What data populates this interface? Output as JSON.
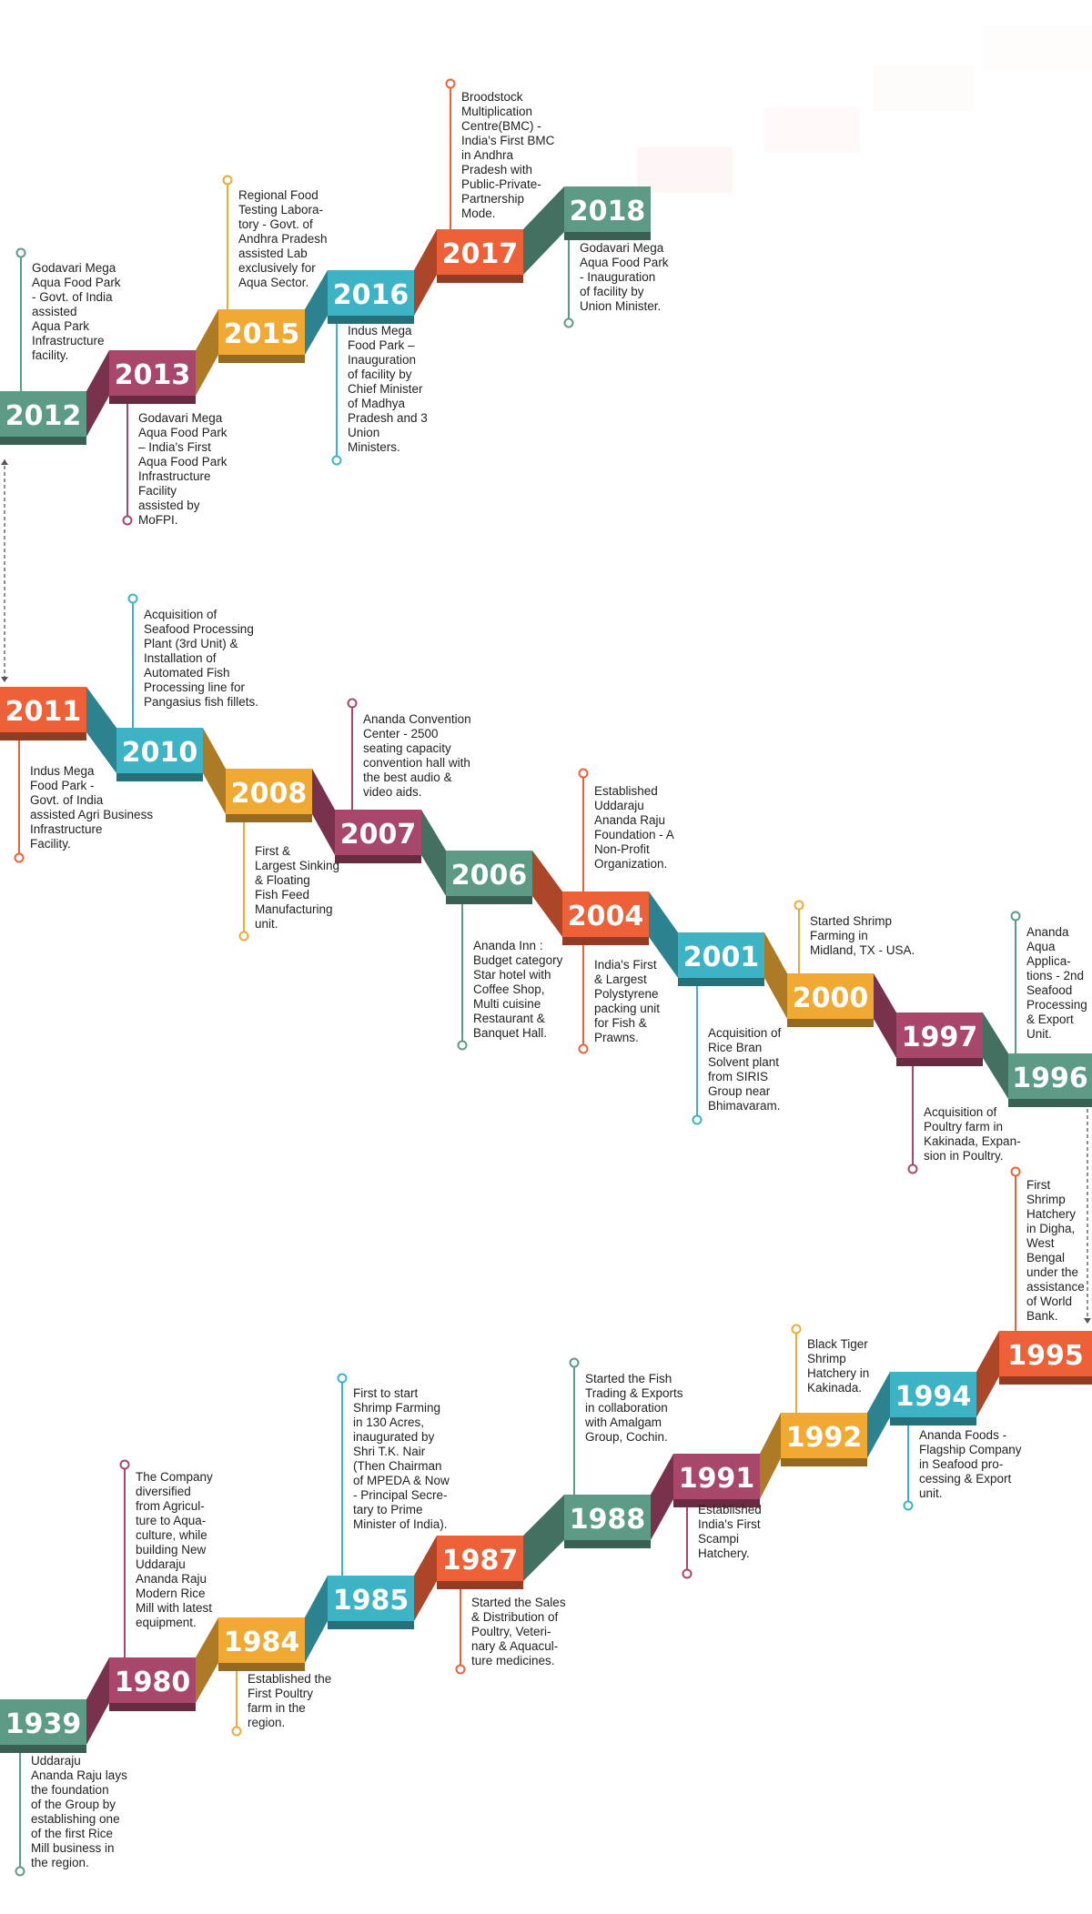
{
  "milestones": [
    {
      "year": "2012",
      "color": "#5e9b87",
      "text": "Godavari Mega\nAqua Food Park\n- Govt. of India\nassisted\nAqua Park\nInfrastructure\nfacility."
    },
    {
      "year": "2013",
      "color": "#a8466b",
      "text": "Godavari Mega\nAqua Food Park\n– India's First\nAqua Food Park\nInfrastructure\nFacility\nassisted by\nMoFPI."
    },
    {
      "year": "2015",
      "color": "#f0a933",
      "text": "Regional Food\nTesting Labora-\ntory - Govt. of\nAndhra Pradesh\nassisted Lab\nexclusively for\nAqua Sector."
    },
    {
      "year": "2016",
      "color": "#3db4c6",
      "text": "Indus Mega\nFood Park –\nInauguration\nof facility by\nChief Minister\nof Madhya\nPradesh and 3\nUnion\nMinisters."
    },
    {
      "year": "2017",
      "color": "#ee6138",
      "text": "Broodstock\nMultiplication\nCentre(BMC) -\nIndia's First BMC\nin Andhra\nPradesh with\nPublic-Private-\nPartnership\nMode."
    },
    {
      "year": "2018",
      "color": "#5e9b87",
      "text": "Godavari Mega\nAqua Food Park\n-  Inauguration\nof facility by\nUnion Minister."
    },
    {
      "year": "2011",
      "color": "#ee6138",
      "text": "Indus Mega\nFood Park -\nGovt. of India\nassisted Agri Business\nInfrastructure\nFacility."
    },
    {
      "year": "2010",
      "color": "#3db4c6",
      "text": "Acquisition of\nSeafood Processing\nPlant (3rd Unit) &\nInstallation of\nAutomated Fish\nProcessing line for\nPangasius fish fillets."
    },
    {
      "year": "2008",
      "color": "#f0a933",
      "text": "First &\nLargest Sinking\n& Floating\nFish Feed\nManufacturing\nunit."
    },
    {
      "year": "2007",
      "color": "#a8466b",
      "text": "Ananda Convention\nCenter - 2500\nseating capacity\nconvention hall with\nthe best audio &\nvideo aids."
    },
    {
      "year": "2006",
      "color": "#5e9b87",
      "text": "Ananda Inn :\nBudget category\nStar hotel with\nCoffee Shop,\nMulti cuisine\nRestaurant &\nBanquet Hall."
    },
    {
      "year": "2004",
      "color": "#ee6138",
      "text_above": "Established\nUddaraju\nAnanda Raju\nFoundation - A\nNon-Profit\nOrganization.",
      "text": "India's First\n& Largest\nPolystyrene\npacking unit\nfor Fish &\nPrawns."
    },
    {
      "year": "2001",
      "color": "#3db4c6",
      "text": "Acquisition of\nRice Bran\nSolvent plant\nfrom SIRIS\nGroup near\nBhimavaram."
    },
    {
      "year": "2000",
      "color": "#f0a933",
      "text": "Started Shrimp\nFarming in\nMidland, TX - USA."
    },
    {
      "year": "1997",
      "color": "#a8466b",
      "text": "Acquisition of\nPoultry farm in\nKakinada, Expan-\nsion in Poultry."
    },
    {
      "year": "1996",
      "color": "#5e9b87",
      "text": "Ananda\nAqua\nApplica-\ntions - 2nd\nSeafood\nProcessing\n& Export\nUnit."
    },
    {
      "year": "1939",
      "color": "#5e9b87",
      "text": "Uddaraju\nAnanda Raju lays\nthe foundation\nof the Group by\nestablishing one\nof the first Rice\nMill business in\nthe region."
    },
    {
      "year": "1980",
      "color": "#a8466b",
      "text": "The Company\ndiversified\nfrom Agricul-\nture to Aqua-\nculture, while\nbuilding New\nUddaraju\nAnanda Raju\nModern Rice\nMill with latest\nequipment."
    },
    {
      "year": "1984",
      "color": "#f0a933",
      "text": "Established the\nFirst Poultry\nfarm in the\nregion."
    },
    {
      "year": "1985",
      "color": "#3db4c6",
      "text": "First to start\nShrimp Farming\nin 130 Acres,\ninaugurated by\nShri T.K. Nair\n(Then Chairman\nof MPEDA & Now\n- Principal Secre-\ntary to Prime\nMinister of India)."
    },
    {
      "year": "1987",
      "color": "#ee6138",
      "text": "Started the Sales\n& Distribution of\nPoultry, Veteri-\nnary & Aquacul-\nture medicines."
    },
    {
      "year": "1988",
      "color": "#5e9b87",
      "text": "Started the Fish\nTrading & Exports\nin collaboration\nwith Amalgam\nGroup, Cochin."
    },
    {
      "year": "1991",
      "color": "#a8466b",
      "text": "Established\nIndia's First\nScampi\nHatchery."
    },
    {
      "year": "1992",
      "color": "#f0a933",
      "text": "Black Tiger\nShrimp\nHatchery in\nKakinada."
    },
    {
      "year": "1994",
      "color": "#3db4c6",
      "text": "Ananda Foods -\nFlagship Company\nin Seafood pro-\ncessing & Export\nunit."
    },
    {
      "year": "1995",
      "color": "#ee6138",
      "text": "First\nShrimp\nHatchery\nin Digha,\nWest\nBengal\nunder the\nassistance\nof World\nBank."
    }
  ]
}
